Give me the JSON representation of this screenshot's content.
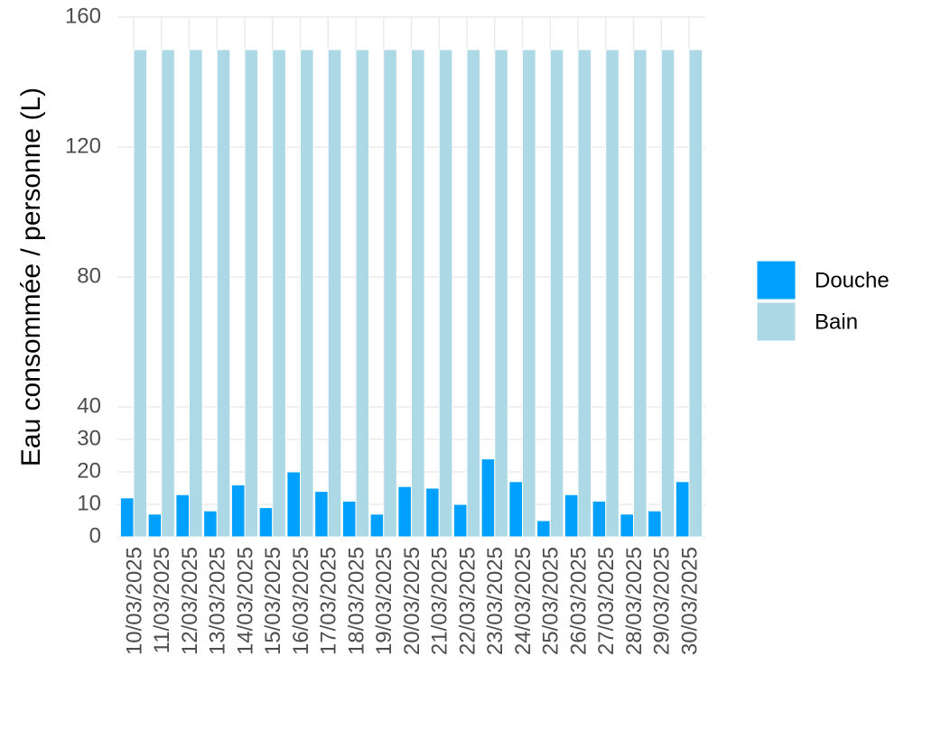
{
  "chart_data": {
    "type": "bar",
    "y_label": "Eau consommée / personne (L)",
    "categories": [
      "10/03/2025",
      "11/03/2025",
      "12/03/2025",
      "13/03/2025",
      "14/03/2025",
      "15/03/2025",
      "16/03/2025",
      "17/03/2025",
      "18/03/2025",
      "19/03/2025",
      "20/03/2025",
      "21/03/2025",
      "22/03/2025",
      "23/03/2025",
      "24/03/2025",
      "25/03/2025",
      "26/03/2025",
      "27/03/2025",
      "28/03/2025",
      "29/03/2025",
      "30/03/2025"
    ],
    "series": [
      {
        "name": "Douche",
        "color": "#00A0FF",
        "values": [
          12,
          7,
          13,
          8,
          16,
          9,
          20,
          14,
          11,
          7,
          15.5,
          15,
          10,
          24,
          17,
          5,
          13,
          11,
          7,
          8,
          17
        ]
      },
      {
        "name": "Bain",
        "color": "#ADD8E6",
        "values": [
          150,
          150,
          150,
          150,
          150,
          150,
          150,
          150,
          150,
          150,
          150,
          150,
          150,
          150,
          150,
          150,
          150,
          150,
          150,
          150,
          150
        ]
      }
    ],
    "ylim": [
      0,
      160
    ],
    "yticks": [
      0,
      10,
      20,
      30,
      40,
      80,
      120,
      160
    ],
    "grid": true,
    "legend": "right"
  }
}
